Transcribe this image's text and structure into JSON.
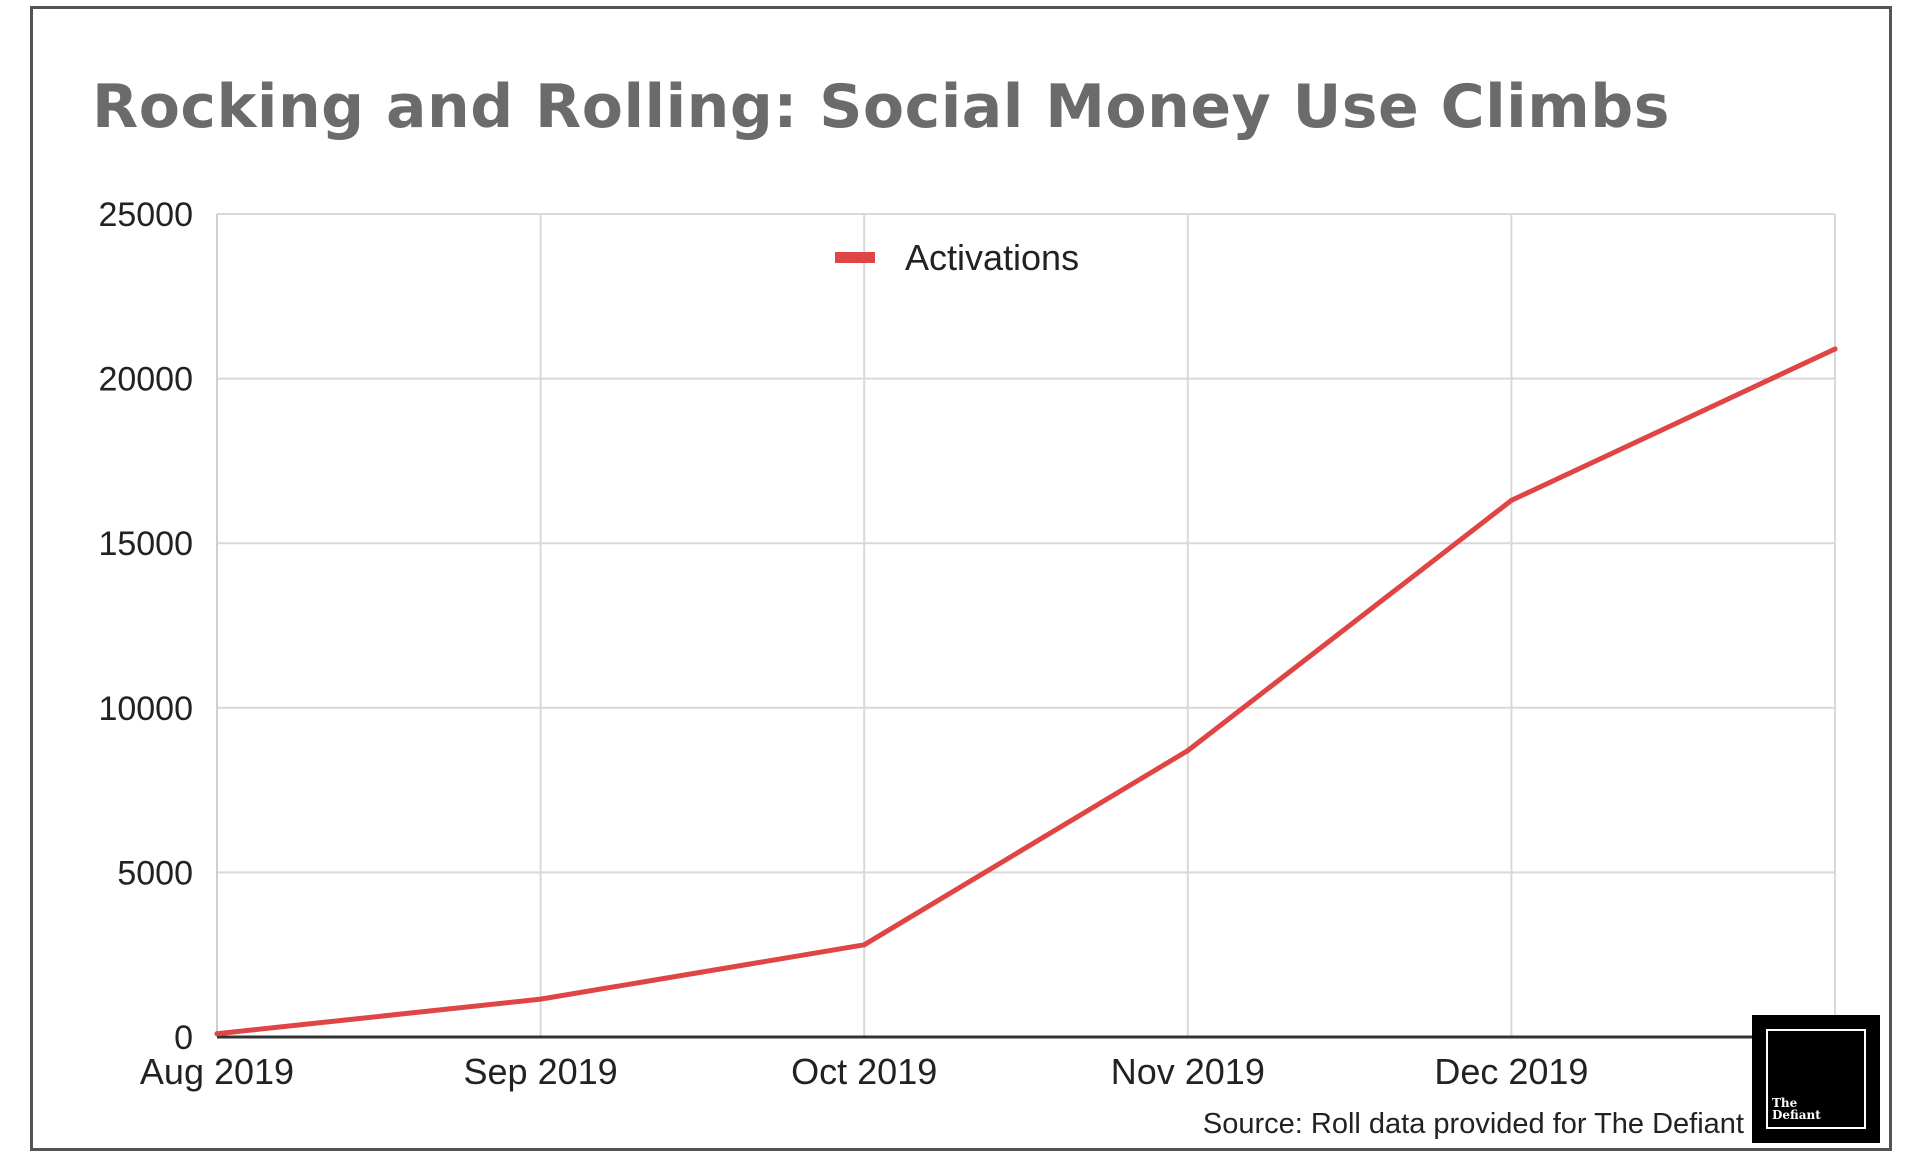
{
  "brand": {
    "name": "The\nDefiant"
  },
  "source_note": "Source: Roll data provided for The Defiant",
  "chart_data": {
    "type": "line",
    "title": "Rocking and Rolling: Social Money Use Climbs",
    "xlabel": "",
    "ylabel": "",
    "categories": [
      "Aug 2019",
      "Sep 2019",
      "Oct 2019",
      "Nov 2019",
      "Dec 2019",
      ""
    ],
    "series": [
      {
        "name": "Activations",
        "color": "#e04545",
        "values": [
          100,
          1150,
          2800,
          8700,
          16300,
          20900
        ]
      }
    ],
    "ylim": [
      0,
      25000
    ],
    "yticks": [
      0,
      5000,
      10000,
      15000,
      20000,
      25000
    ],
    "grid": true,
    "legend": "top-center"
  }
}
